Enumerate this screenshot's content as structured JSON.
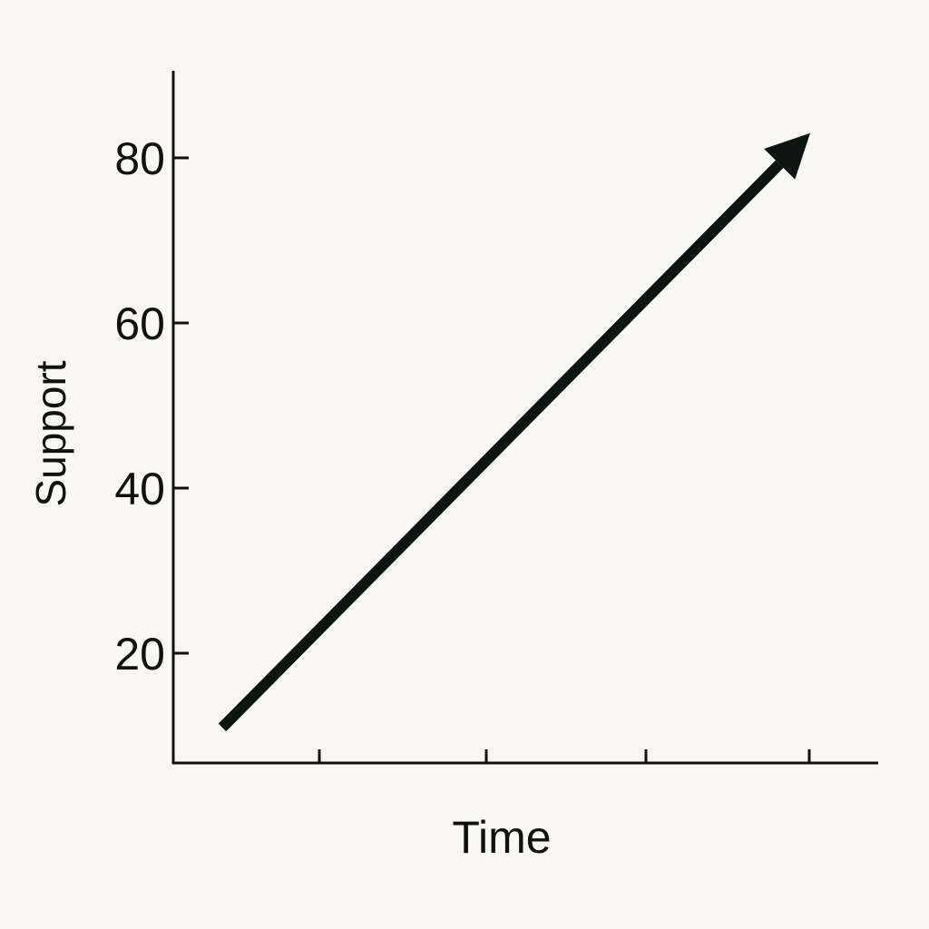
{
  "chart_data": {
    "type": "line",
    "title": "",
    "xlabel": "Time",
    "ylabel": "Support",
    "yticks": [
      20,
      40,
      60,
      80
    ],
    "ytick_labels": [
      "20",
      "40",
      "60",
      "80"
    ],
    "xtick_count": 4,
    "ylim": [
      7,
      91
    ],
    "grid": false,
    "series": [
      {
        "x": [
          0,
          1
        ],
        "y": [
          11,
          83
        ],
        "arrow_end": true
      }
    ],
    "colors": {
      "line": "#0d1512",
      "background": "#f9f8f4"
    }
  }
}
